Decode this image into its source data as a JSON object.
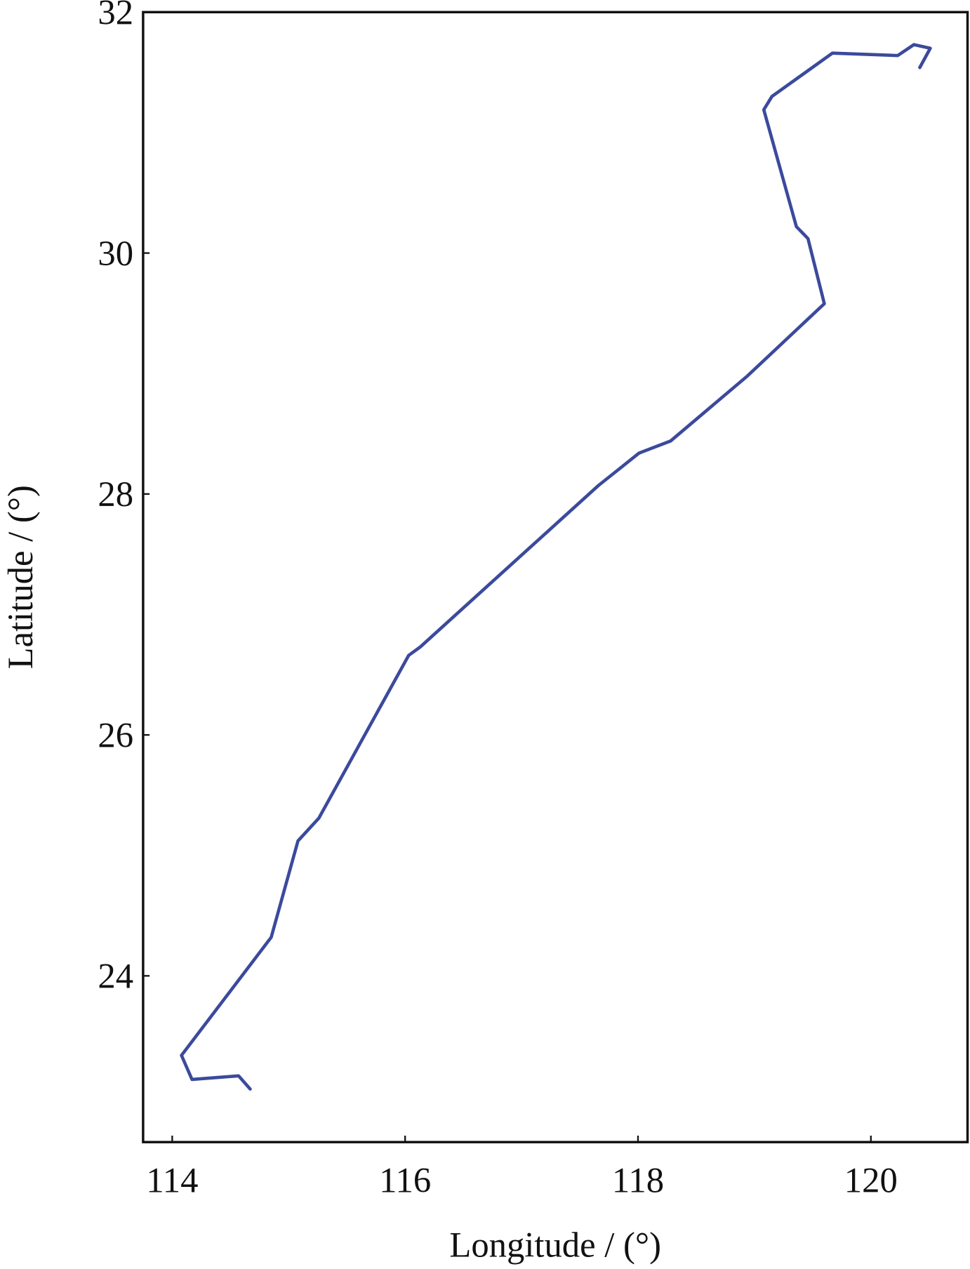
{
  "chart_data": {
    "type": "line",
    "x_label": "Longitude / (°)",
    "y_label": "Latitude / (°)",
    "xlim": [
      113.75,
      120.83
    ],
    "ylim": [
      22.62,
      32
    ],
    "xticks": [
      114,
      116,
      118,
      120
    ],
    "yticks": [
      24,
      26,
      28,
      30,
      32
    ],
    "series": [
      {
        "color": "#3b4a9c",
        "x": [
          114.67,
          114.57,
          114.17,
          114.08,
          114.85,
          115.08,
          115.26,
          116.03,
          116.13,
          117.66,
          118.01,
          118.28,
          118.94,
          119.6,
          119.46,
          119.36,
          119.08,
          119.15,
          119.67,
          120.23,
          120.37,
          120.51,
          120.42
        ],
        "values": [
          23.06,
          23.17,
          23.14,
          23.34,
          24.32,
          25.12,
          25.31,
          26.66,
          26.73,
          28.07,
          28.34,
          28.44,
          28.98,
          29.58,
          30.12,
          30.22,
          31.19,
          31.3,
          31.66,
          31.64,
          31.73,
          31.7,
          31.54
        ]
      }
    ]
  }
}
